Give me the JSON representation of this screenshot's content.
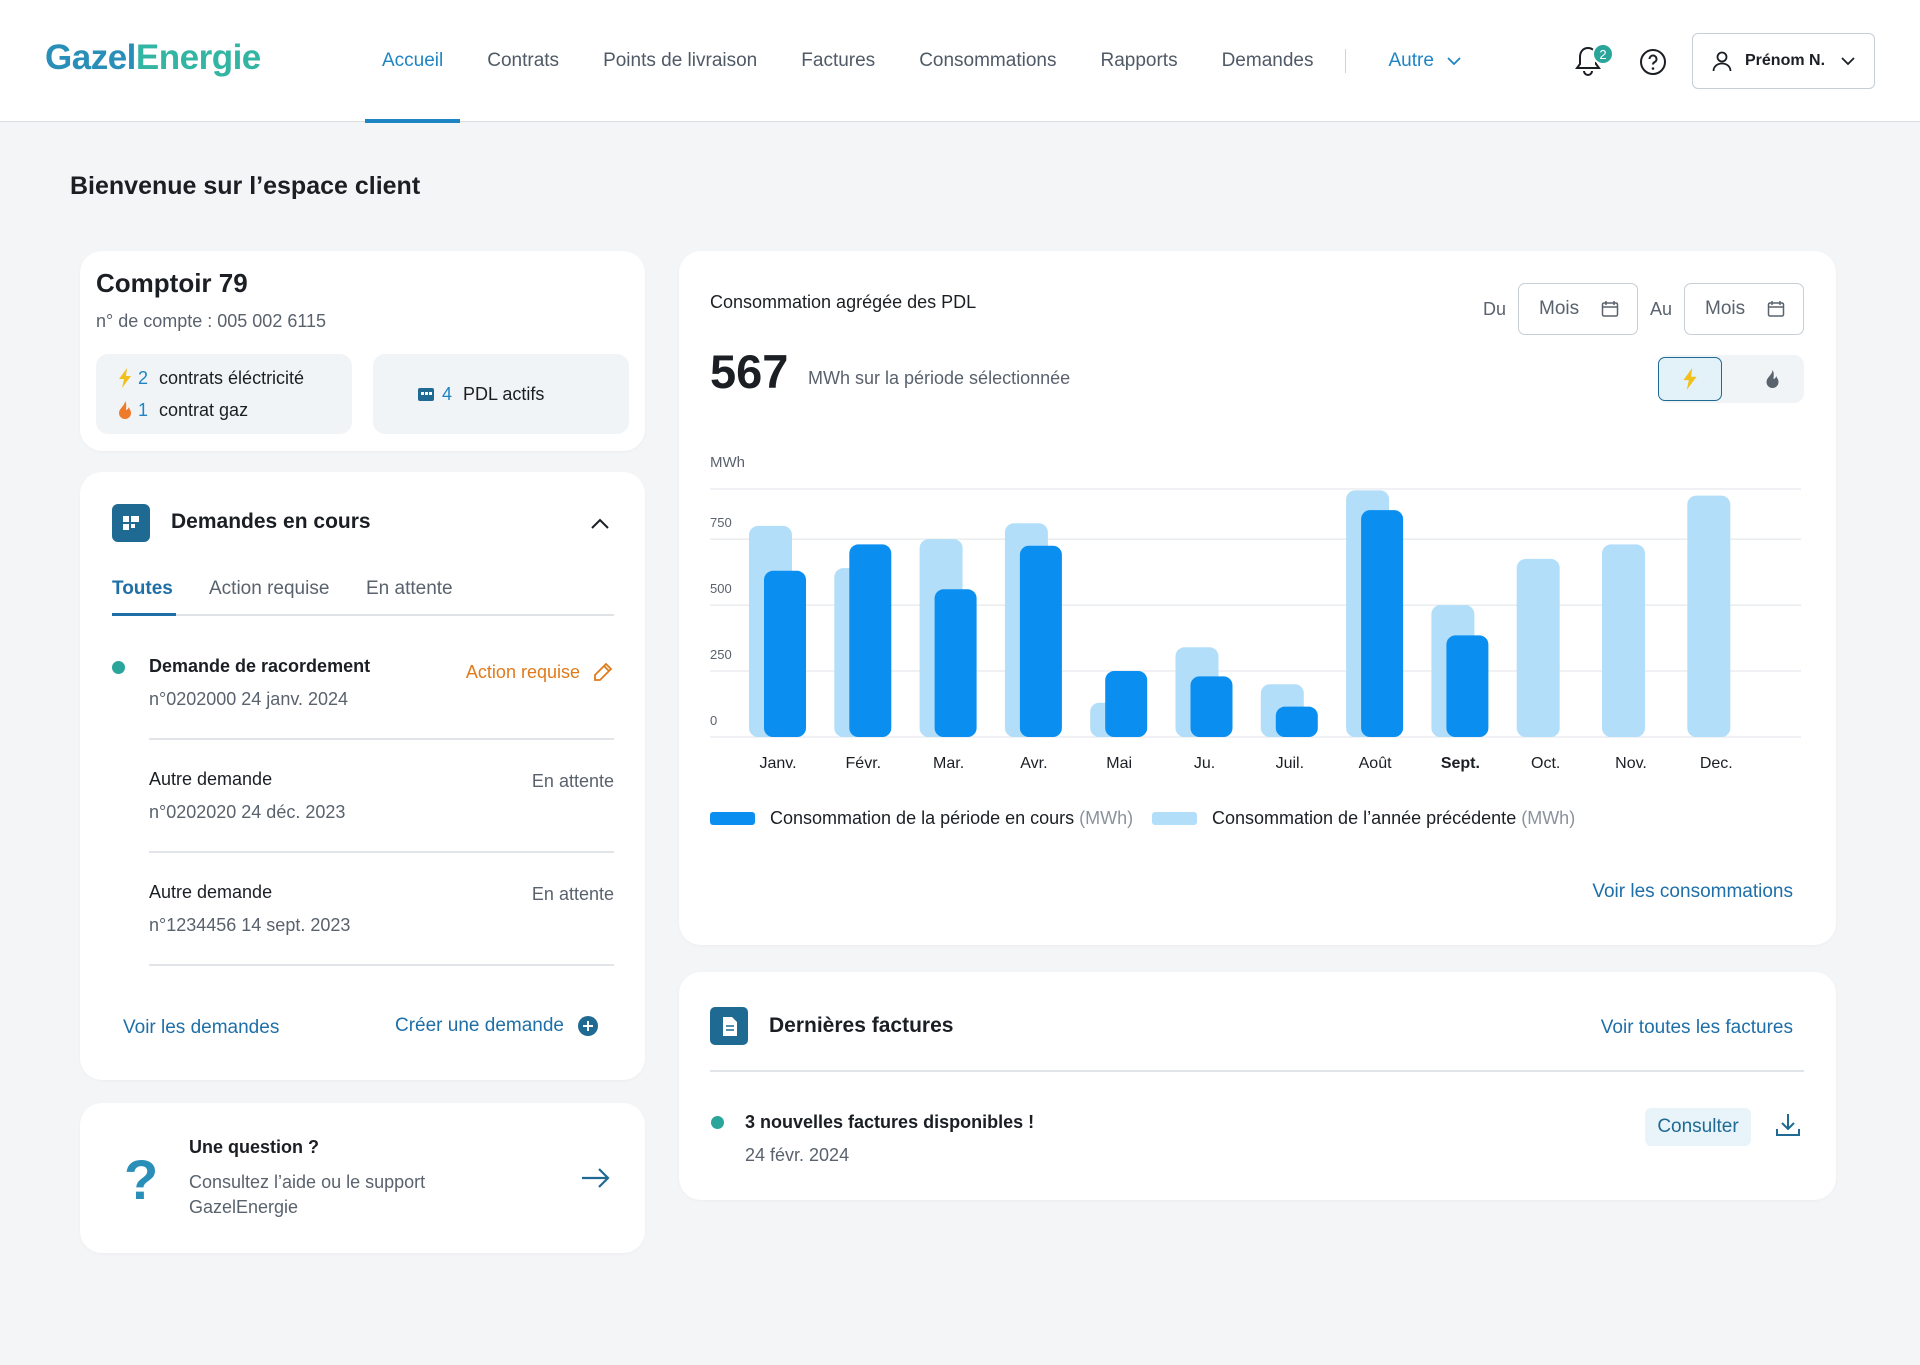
{
  "brand": {
    "logo_part1": "Gazel",
    "logo_part2": "Energie"
  },
  "nav": {
    "items": [
      "Accueil",
      "Contrats",
      "Points de livraison",
      "Factures",
      "Consommations",
      "Rapports",
      "Demandes"
    ],
    "more": "Autre",
    "notifications_count": "2",
    "user": "Prénom N."
  },
  "page": {
    "title": "Bienvenue sur l’espace client"
  },
  "account": {
    "name": "Comptoir 79",
    "number": "n° de compte : 005 002 6115",
    "elec_count": "2",
    "elec_label": "contrats éléctricité",
    "gas_count": "1",
    "gas_label": "contrat gaz",
    "pdl_count": "4",
    "pdl_label": "PDL actifs"
  },
  "requests": {
    "title": "Demandes en cours",
    "tabs": [
      "Toutes",
      "Action requise",
      "En attente"
    ],
    "items": [
      {
        "title": "Demande de racordement",
        "ref": "n°0202000  24 janv. 2024",
        "status": "Action requise"
      },
      {
        "title": "Autre demande",
        "ref": "n°0202020  24 déc. 2023",
        "status": "En attente"
      },
      {
        "title": "Autre demande",
        "ref": "n°1234456  14 sept. 2023",
        "status": "En attente"
      }
    ],
    "see_all": "Voir les demandes",
    "create": "Créer une demande"
  },
  "support": {
    "question": "Une question ?",
    "text_line1": "Consultez l’aide ou le support",
    "text_line2": "GazelEnergie"
  },
  "consumption": {
    "title": "Consommation agrégée des PDL",
    "from_label": "Du",
    "to_label": "Au",
    "from_placeholder": "Mois",
    "to_placeholder": "Mois",
    "total": "567",
    "total_unit": "MWh sur la période sélectionnée",
    "see_all": "Voir les consommations"
  },
  "chart_data": {
    "type": "bar",
    "ylabel": "MWh",
    "ylim": [
      0,
      940
    ],
    "yticks": [
      0,
      250,
      500,
      750
    ],
    "categories": [
      "Janv.",
      "Févr.",
      "Mar.",
      "Avr.",
      "Mai",
      "Ju.",
      "Juil.",
      "Août",
      "Sept.",
      "Oct.",
      "Nov.",
      "Dec."
    ],
    "highlighted_category": "Sept.",
    "series": [
      {
        "name": "Consommation de la période en cours",
        "unit": "(MWh)",
        "color": "#0a8ff0",
        "values": [
          630,
          730,
          560,
          725,
          250,
          230,
          115,
          860,
          385,
          null,
          null,
          null
        ]
      },
      {
        "name": "Consommation de l’année précédente",
        "unit": "(MWh)",
        "color": "#b3defa",
        "values": [
          800,
          640,
          750,
          810,
          130,
          340,
          200,
          935,
          500,
          675,
          730,
          915
        ]
      }
    ]
  },
  "invoices": {
    "title": "Dernières factures",
    "see_all": "Voir toutes les factures",
    "item_title": "3 nouvelles factures disponibles !",
    "item_date": "24 févr. 2024",
    "consult": "Consulter"
  },
  "colors": {
    "primary": "#1e84c4",
    "dark_blue": "#1f6a93",
    "teal": "#2aa59a",
    "orange": "#e07a1b",
    "bar_current": "#0a8ff0",
    "bar_previous": "#b3defa"
  }
}
